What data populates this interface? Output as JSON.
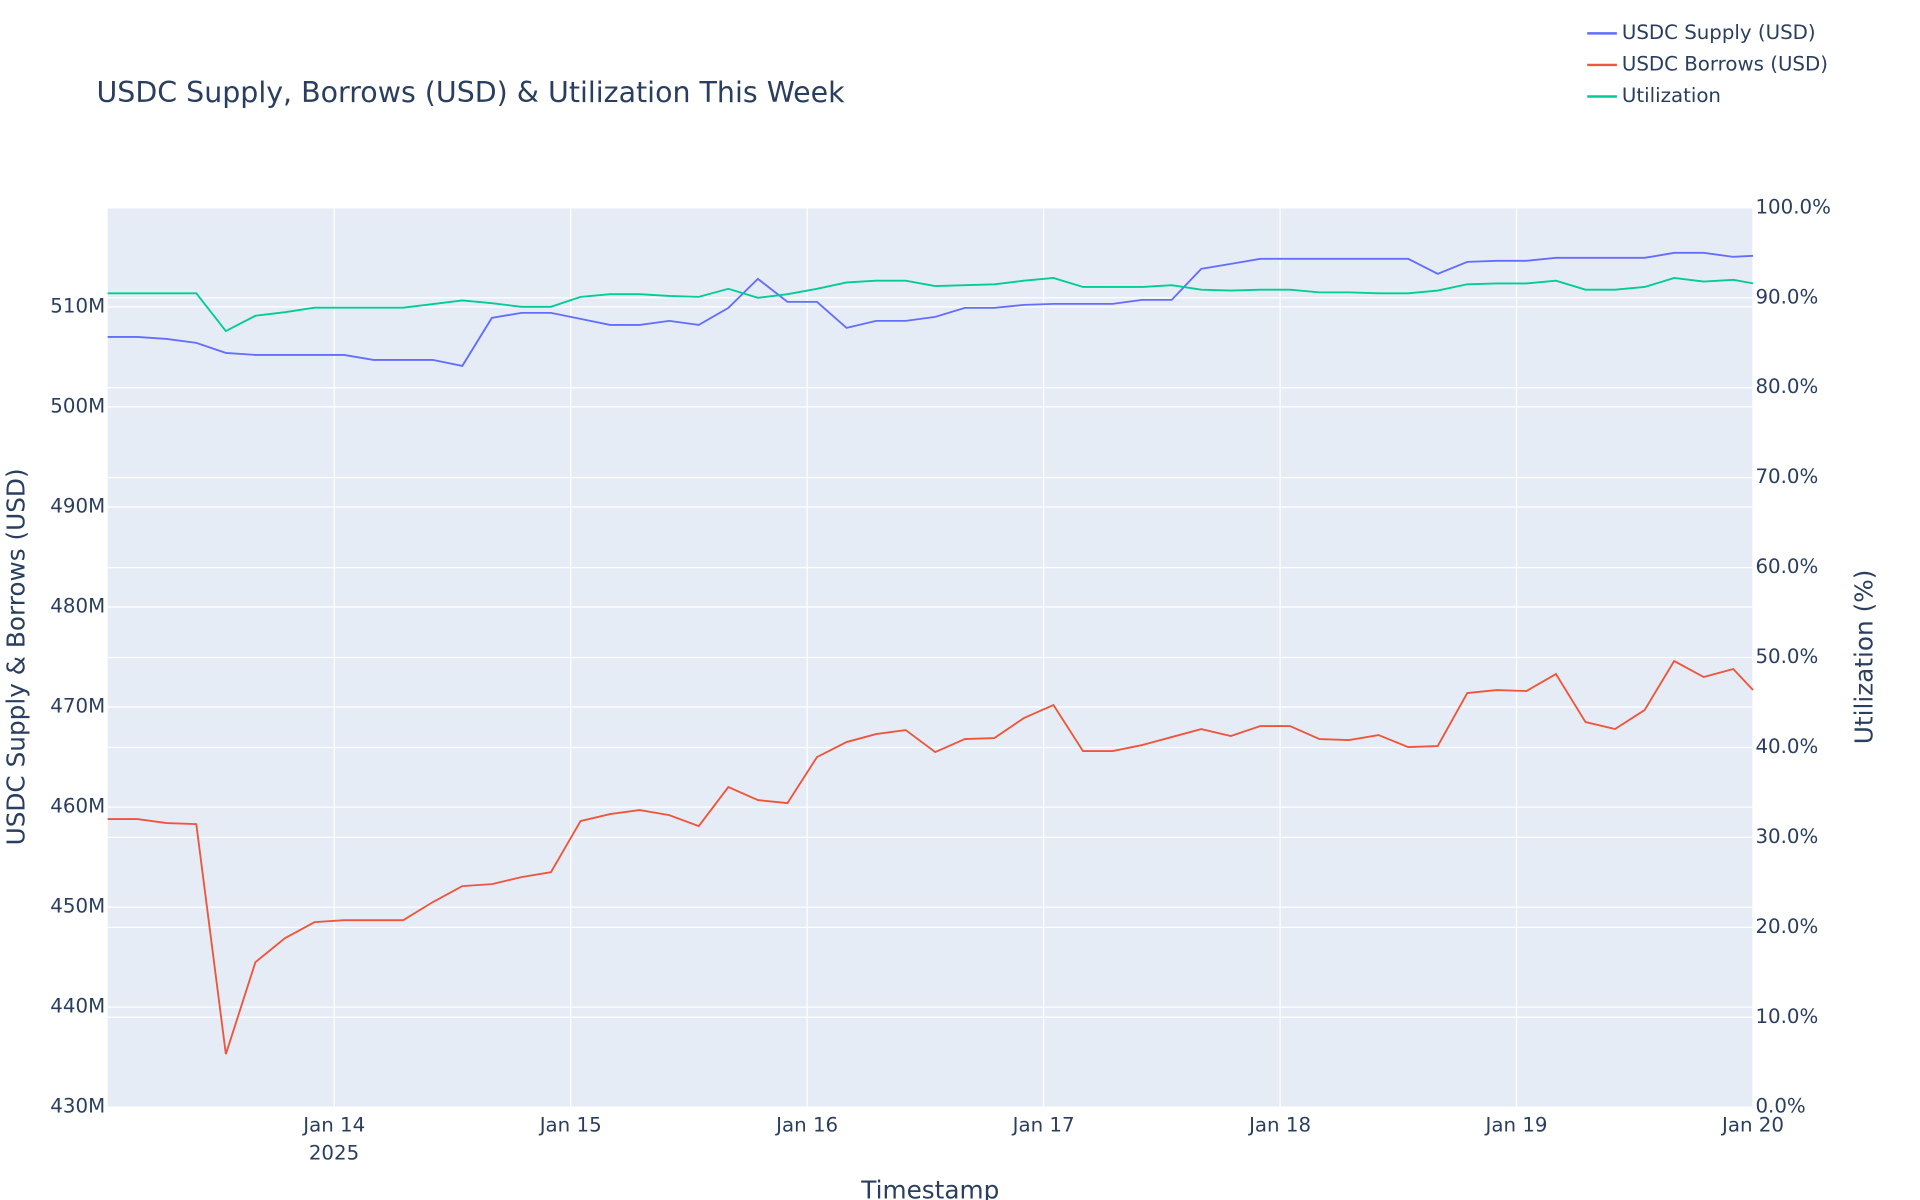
{
  "chart_data": {
    "type": "line",
    "title": "USDC Supply, Borrows (USD) & Utilization This Week",
    "x_label": "Timestamp",
    "y_label": "USDC Supply & Borrows (USD)",
    "y2_label": "Utilization (%)",
    "x": [
      "2025-01-13T01:00",
      "2025-01-13T04:00",
      "2025-01-13T07:00",
      "2025-01-13T10:00",
      "2025-01-13T13:00",
      "2025-01-13T16:00",
      "2025-01-13T19:00",
      "2025-01-13T22:00",
      "2025-01-14T01:00",
      "2025-01-14T04:00",
      "2025-01-14T07:00",
      "2025-01-14T10:00",
      "2025-01-14T13:00",
      "2025-01-14T16:00",
      "2025-01-14T19:00",
      "2025-01-14T22:00",
      "2025-01-15T01:00",
      "2025-01-15T04:00",
      "2025-01-15T07:00",
      "2025-01-15T10:00",
      "2025-01-15T13:00",
      "2025-01-15T16:00",
      "2025-01-15T19:00",
      "2025-01-15T22:00",
      "2025-01-16T01:00",
      "2025-01-16T04:00",
      "2025-01-16T07:00",
      "2025-01-16T10:00",
      "2025-01-16T13:00",
      "2025-01-16T16:00",
      "2025-01-16T19:00",
      "2025-01-16T22:00",
      "2025-01-17T01:00",
      "2025-01-17T04:00",
      "2025-01-17T07:00",
      "2025-01-17T10:00",
      "2025-01-17T13:00",
      "2025-01-17T16:00",
      "2025-01-17T19:00",
      "2025-01-17T22:00",
      "2025-01-18T01:00",
      "2025-01-18T04:00",
      "2025-01-18T07:00",
      "2025-01-18T10:00",
      "2025-01-18T13:00",
      "2025-01-18T16:00",
      "2025-01-18T19:00",
      "2025-01-18T22:00",
      "2025-01-19T01:00",
      "2025-01-19T04:00",
      "2025-01-19T07:00",
      "2025-01-19T10:00",
      "2025-01-19T13:00",
      "2025-01-19T16:00",
      "2025-01-19T19:00",
      "2025-01-19T22:00",
      "2025-01-20T00:00"
    ],
    "xlim": [
      "2025-01-13T01:00",
      "2025-01-20T00:00"
    ],
    "xticks": [
      {
        "value": "2025-01-14T00:00",
        "label": "Jan 14"
      },
      {
        "value": "2025-01-15T00:00",
        "label": "Jan 15"
      },
      {
        "value": "2025-01-16T00:00",
        "label": "Jan 16"
      },
      {
        "value": "2025-01-17T00:00",
        "label": "Jan 17"
      },
      {
        "value": "2025-01-18T00:00",
        "label": "Jan 18"
      },
      {
        "value": "2025-01-19T00:00",
        "label": "Jan 19"
      },
      {
        "value": "2025-01-20T00:00",
        "label": "Jan 20"
      }
    ],
    "xtick_year": "2025",
    "ylim": [
      430000000,
      519900000
    ],
    "yticks": [
      {
        "value": 430000000,
        "label": "430M"
      },
      {
        "value": 440000000,
        "label": "440M"
      },
      {
        "value": 450000000,
        "label": "450M"
      },
      {
        "value": 460000000,
        "label": "460M"
      },
      {
        "value": 470000000,
        "label": "470M"
      },
      {
        "value": 480000000,
        "label": "480M"
      },
      {
        "value": 490000000,
        "label": "490M"
      },
      {
        "value": 500000000,
        "label": "500M"
      },
      {
        "value": 510000000,
        "label": "510M"
      }
    ],
    "y2lim": [
      0,
      100
    ],
    "y2ticks": [
      {
        "value": 0,
        "label": "0.0%"
      },
      {
        "value": 10,
        "label": "10.0%"
      },
      {
        "value": 20,
        "label": "20.0%"
      },
      {
        "value": 30,
        "label": "30.0%"
      },
      {
        "value": 40,
        "label": "40.0%"
      },
      {
        "value": 50,
        "label": "50.0%"
      },
      {
        "value": 60,
        "label": "60.0%"
      },
      {
        "value": 70,
        "label": "70.0%"
      },
      {
        "value": 80,
        "label": "80.0%"
      },
      {
        "value": 90,
        "label": "90.0%"
      },
      {
        "value": 100,
        "label": "100.0%"
      }
    ],
    "grid": true,
    "legend": "top-right",
    "series": [
      {
        "name": "USDC Supply (USD)",
        "color": "#636efa",
        "values": [
          507000000,
          507000000,
          506800000,
          506400000,
          505400000,
          505200000,
          505200000,
          505200000,
          505200000,
          504700000,
          504700000,
          504700000,
          504100000,
          508900000,
          509400000,
          509400000,
          508800000,
          508200000,
          508200000,
          508600000,
          508200000,
          509900000,
          512800000,
          510500000,
          510500000,
          507900000,
          508600000,
          508600000,
          509000000,
          509900000,
          509900000,
          510200000,
          510300000,
          510300000,
          510300000,
          510700000,
          510700000,
          513800000,
          514300000,
          514800000,
          514800000,
          514800000,
          514800000,
          514800000,
          514800000,
          513300000,
          514500000,
          514600000,
          514600000,
          514900000,
          514900000,
          514900000,
          514900000,
          515400000,
          515400000,
          515000000,
          515100000
        ]
      },
      {
        "name": "USDC Borrows (USD)",
        "color": "#ef553b",
        "values": [
          458800000,
          458800000,
          458400000,
          458300000,
          435300000,
          444500000,
          446900000,
          448500000,
          448700000,
          448700000,
          448700000,
          450500000,
          452100000,
          452300000,
          453000000,
          453500000,
          458600000,
          459300000,
          459700000,
          459200000,
          458100000,
          462000000,
          460700000,
          460400000,
          465000000,
          466500000,
          467300000,
          467700000,
          465500000,
          466800000,
          466900000,
          468900000,
          470200000,
          465600000,
          465600000,
          466200000,
          467000000,
          467800000,
          467100000,
          468100000,
          468100000,
          466800000,
          466700000,
          467200000,
          466000000,
          466100000,
          471400000,
          471700000,
          471600000,
          473300000,
          468500000,
          467800000,
          469700000,
          474600000,
          473000000,
          473800000,
          471700000
        ]
      },
      {
        "name": "Utilization",
        "color": "#00cc96",
        "axis": "y2",
        "values": [
          90.5,
          90.5,
          90.5,
          90.5,
          86.3,
          88.0,
          88.4,
          88.9,
          88.9,
          88.9,
          88.9,
          89.3,
          89.7,
          89.4,
          89.0,
          89.0,
          90.1,
          90.4,
          90.4,
          90.2,
          90.1,
          91.0,
          90.0,
          90.4,
          91.0,
          91.7,
          91.9,
          91.9,
          91.3,
          91.4,
          91.5,
          91.9,
          92.2,
          91.2,
          91.2,
          91.2,
          91.4,
          90.9,
          90.8,
          90.9,
          90.9,
          90.6,
          90.6,
          90.5,
          90.5,
          90.8,
          91.5,
          91.6,
          91.6,
          91.9,
          90.9,
          90.9,
          91.2,
          92.2,
          91.8,
          92.0,
          91.6
        ]
      }
    ]
  }
}
